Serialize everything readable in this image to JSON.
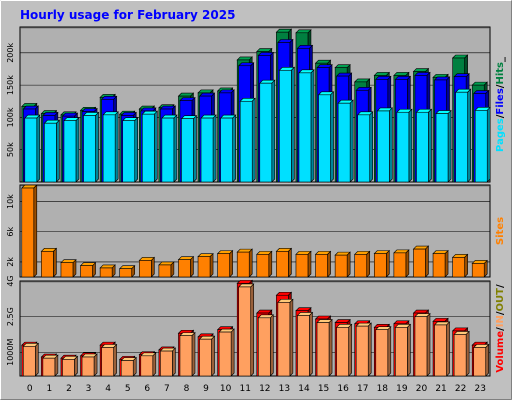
{
  "chart_data": {
    "type": "bar",
    "title": "Hourly usage for February 2025",
    "categories": [
      "0",
      "1",
      "2",
      "3",
      "4",
      "5",
      "6",
      "7",
      "8",
      "9",
      "10",
      "11",
      "12",
      "13",
      "14",
      "15",
      "16",
      "17",
      "18",
      "19",
      "20",
      "21",
      "22",
      "23"
    ],
    "colors": {
      "hits": "#008040",
      "files": "#0000ff",
      "pages": "#00e0ff",
      "sites": "#ff8000",
      "volume": "#ff0000",
      "volume_in": "#ffa060",
      "title": "#0000ff",
      "plot_bg": "#b0b0b0"
    },
    "panels": [
      {
        "id": "traffic",
        "ylim": [
          0,
          240000
        ],
        "ticks": [
          {
            "label": "200k",
            "value": 200000
          },
          {
            "label": "150k",
            "value": 150000
          },
          {
            "label": "100k",
            "value": 100000
          },
          {
            "label": "50k",
            "value": 50000
          }
        ],
        "legend": [
          {
            "label": "Pages",
            "color": "#00e0ff"
          },
          {
            "label": "/",
            "color": "#000000"
          },
          {
            "label": "Files",
            "color": "#0000ff"
          },
          {
            "label": "/",
            "color": "#000000"
          },
          {
            "label": "Hits",
            "color": "#008040"
          },
          {
            "label": "_",
            "color": "#000000"
          }
        ],
        "series": [
          {
            "name": "Hits",
            "color": "#008040",
            "values": [
              117000,
              106000,
              104000,
              111000,
              131000,
              105000,
              113000,
              115000,
              133000,
              138000,
              141000,
              189000,
              202000,
              232000,
              231000,
              184000,
              177000,
              155000,
              165000,
              165000,
              171000,
              162000,
              192000,
              150000
            ]
          },
          {
            "name": "Files",
            "color": "#0000ff",
            "values": [
              113000,
              103000,
              102000,
              109000,
              128000,
              103000,
              110000,
              113000,
              126000,
              133000,
              138000,
              180000,
              196000,
              216000,
              207000,
              177000,
              164000,
              142000,
              159000,
              159000,
              165000,
              158000,
              163000,
              137000
            ]
          },
          {
            "name": "Pages",
            "color": "#00e0ff",
            "values": [
              99000,
              91000,
              95000,
              103000,
              104000,
              95000,
              105000,
              99000,
              98000,
              99000,
              99000,
              125000,
              153000,
              173000,
              169000,
              135000,
              122000,
              104000,
              110000,
              108000,
              108000,
              106000,
              139000,
              111000
            ]
          }
        ]
      },
      {
        "id": "sites",
        "ylim": [
          0,
          12200
        ],
        "ticks": [
          {
            "label": "10k",
            "value": 10000
          },
          {
            "label": "6k",
            "value": 6000
          },
          {
            "label": "2k",
            "value": 2000
          }
        ],
        "legend": [
          {
            "label": "Sites",
            "color": "#ff8000"
          }
        ],
        "series": [
          {
            "name": "Sites",
            "color": "#ff8000",
            "values": [
              11800,
              3400,
              1900,
              1500,
              1200,
              1100,
              2200,
              1600,
              2300,
              2700,
              3100,
              3300,
              3000,
              3400,
              3000,
              3000,
              2900,
              3000,
              3100,
              3200,
              3700,
              3100,
              2600,
              1800
            ]
          }
        ]
      },
      {
        "id": "volume",
        "ylim": [
          0,
          4000
        ],
        "ticks": [
          {
            "label": "4G",
            "value": 4000
          },
          {
            "label": "2.5G",
            "value": 2500
          },
          {
            "label": "1000M",
            "value": 1000
          }
        ],
        "legend": [
          {
            "label": "Volume",
            "color": "#ff0000"
          },
          {
            "label": "/",
            "color": "#000000"
          },
          {
            "label": "IN",
            "color": "#ffa060"
          },
          {
            "label": "/",
            "color": "#000000"
          },
          {
            "label": "OUT",
            "color": "#808000"
          },
          {
            "label": "/",
            "color": "#000000"
          }
        ],
        "series": [
          {
            "name": "Volume",
            "color": "#ff0000",
            "values": [
              1300,
              800,
              750,
              850,
              1300,
              700,
              900,
              1100,
              1800,
              1650,
              1950,
              3900,
              2650,
              3400,
              2750,
              2400,
              2250,
              2200,
              2050,
              2200,
              2650,
              2300,
              1900,
              1300
            ]
          },
          {
            "name": "IN",
            "color": "#ffa060",
            "values": [
              1250,
              750,
              700,
              800,
              1200,
              650,
              850,
              1050,
              1700,
              1550,
              1850,
              3750,
              2450,
              3100,
              2550,
              2250,
              2050,
              2100,
              1950,
              2050,
              2500,
              2150,
              1750,
              1200
            ]
          }
        ]
      }
    ]
  }
}
